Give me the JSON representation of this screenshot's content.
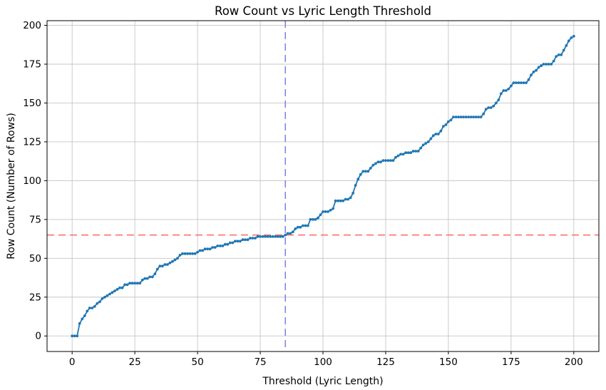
{
  "figure": {
    "background": "#ffffff",
    "plot_background": "#ffffff"
  },
  "chart_data": {
    "type": "line",
    "title": "Row Count vs Lyric Length Threshold",
    "xlabel": "Threshold (Lyric Length)",
    "ylabel": "Row Count (Number of Rows)",
    "x_ticks": [
      0,
      25,
      50,
      75,
      100,
      125,
      150,
      175,
      200
    ],
    "y_ticks": [
      0,
      25,
      50,
      75,
      100,
      125,
      150,
      175,
      200
    ],
    "xlim": [
      -10,
      210
    ],
    "ylim": [
      -10,
      203
    ],
    "grid": true,
    "grid_color": "#c6c6c6",
    "spine_color": "#000000",
    "series": [
      {
        "name": "row-count-curve",
        "color": "#1f77b4",
        "marker": "point",
        "line_width": 1.8,
        "x_start": 0,
        "x_step": 1,
        "values": [
          0,
          0,
          0,
          8,
          11,
          13,
          16,
          18,
          18,
          19,
          21,
          22,
          24,
          25,
          26,
          27,
          28,
          29,
          30,
          31,
          31,
          33,
          33,
          34,
          34,
          34,
          34,
          34,
          36,
          37,
          37,
          38,
          38,
          40,
          43,
          45,
          45,
          46,
          46,
          47,
          48,
          49,
          50,
          52,
          53,
          53,
          53,
          53,
          53,
          53,
          54,
          55,
          55,
          56,
          56,
          56,
          57,
          57,
          58,
          58,
          58,
          59,
          59,
          60,
          60,
          61,
          61,
          61,
          62,
          62,
          62,
          63,
          63,
          63,
          64,
          64,
          64,
          64,
          64,
          64,
          64,
          64,
          64,
          64,
          64,
          65,
          66,
          66,
          67,
          69,
          70,
          70,
          71,
          71,
          71,
          75,
          75,
          75,
          76,
          78,
          80,
          80,
          80,
          81,
          82,
          87,
          87,
          87,
          87,
          88,
          88,
          89,
          92,
          97,
          101,
          104,
          106,
          106,
          106,
          108,
          110,
          111,
          112,
          112,
          113,
          113,
          113,
          113,
          113,
          115,
          116,
          117,
          117,
          118,
          118,
          118,
          119,
          119,
          119,
          121,
          123,
          124,
          125,
          127,
          129,
          130,
          130,
          132,
          135,
          136,
          138,
          139,
          141,
          141,
          141,
          141,
          141,
          141,
          141,
          141,
          141,
          141,
          141,
          141,
          143,
          146,
          147,
          147,
          148,
          150,
          152,
          156,
          158,
          158,
          159,
          161,
          163,
          163,
          163,
          163,
          163,
          163,
          165,
          168,
          170,
          171,
          173,
          174,
          175,
          175,
          175,
          175,
          177,
          180,
          181,
          181,
          184,
          187,
          190,
          192,
          193
        ]
      }
    ],
    "reference_lines": {
      "horizontal": {
        "y": 65,
        "color": "#ff6666",
        "style": "dashed"
      },
      "vertical": {
        "x": 85,
        "color": "#7d7de8",
        "style": "dashed"
      }
    }
  }
}
